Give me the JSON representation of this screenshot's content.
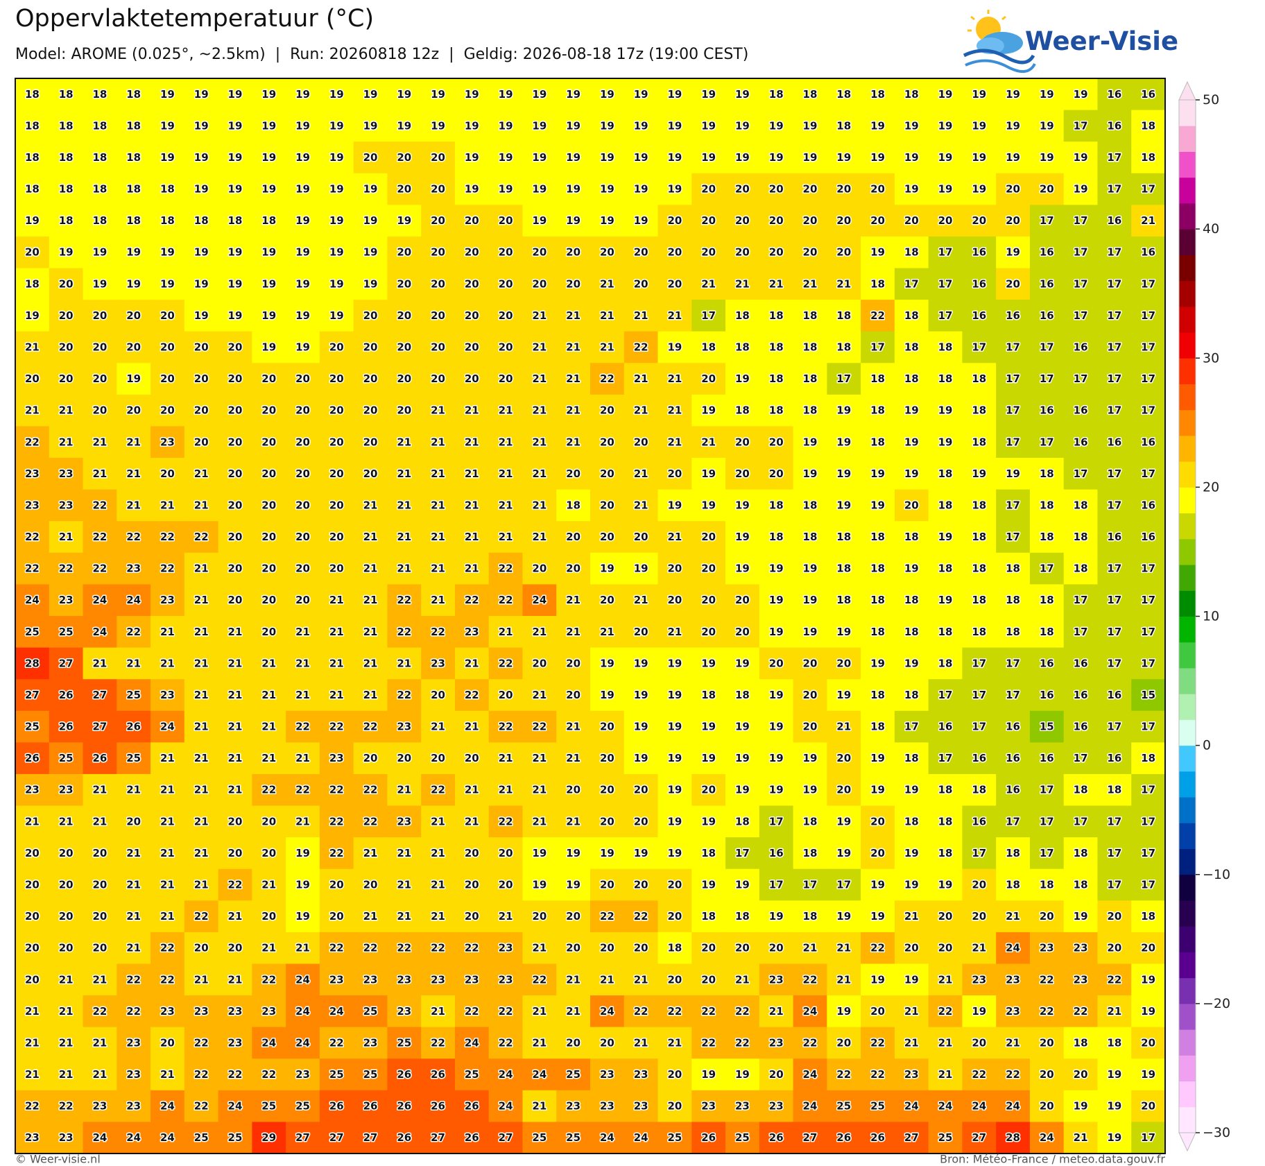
{
  "header": {
    "title": "Oppervlaktetemperatuur (°C)",
    "subtitle": "Model: AROME (0.025°, ~2.5km)  |  Run: 20260818 12z  |  Geldig: 2026-08-18 17z (19:00 CEST)",
    "logo": "Weer-Visie"
  },
  "map": {
    "rows": [
      [
        18,
        18,
        18,
        18,
        19,
        19,
        19,
        19,
        19,
        19,
        19,
        19,
        19,
        19,
        19,
        19,
        19,
        19,
        19,
        19,
        19,
        19,
        18,
        18,
        18,
        18,
        18,
        19,
        19,
        19,
        19,
        19,
        16,
        16
      ],
      [
        18,
        18,
        18,
        18,
        19,
        19,
        19,
        19,
        19,
        19,
        19,
        19,
        19,
        19,
        19,
        19,
        19,
        19,
        19,
        19,
        19,
        19,
        19,
        19,
        18,
        19,
        19,
        19,
        19,
        19,
        19,
        17,
        16,
        18
      ],
      [
        18,
        18,
        18,
        18,
        19,
        19,
        19,
        19,
        19,
        19,
        20,
        20,
        20,
        19,
        19,
        19,
        19,
        19,
        19,
        19,
        19,
        19,
        19,
        19,
        19,
        19,
        19,
        19,
        19,
        19,
        19,
        19,
        17,
        18
      ],
      [
        18,
        18,
        18,
        18,
        18,
        19,
        19,
        19,
        19,
        19,
        19,
        20,
        20,
        19,
        19,
        19,
        19,
        19,
        19,
        19,
        20,
        20,
        20,
        20,
        20,
        20,
        19,
        19,
        19,
        20,
        20,
        19,
        17,
        17
      ],
      [
        19,
        18,
        18,
        18,
        18,
        18,
        18,
        18,
        19,
        19,
        19,
        19,
        20,
        20,
        20,
        19,
        19,
        19,
        19,
        20,
        20,
        20,
        20,
        20,
        20,
        20,
        20,
        20,
        20,
        20,
        17,
        17,
        16,
        21
      ],
      [
        20,
        19,
        19,
        19,
        19,
        19,
        19,
        19,
        19,
        19,
        19,
        20,
        20,
        20,
        20,
        20,
        20,
        20,
        20,
        20,
        20,
        20,
        20,
        20,
        20,
        19,
        18,
        17,
        16,
        19,
        16,
        17,
        17,
        16
      ],
      [
        18,
        20,
        19,
        19,
        19,
        19,
        19,
        19,
        19,
        19,
        19,
        20,
        20,
        20,
        20,
        20,
        20,
        21,
        20,
        20,
        21,
        21,
        21,
        21,
        21,
        18,
        17,
        17,
        16,
        20,
        16,
        17,
        17,
        17
      ],
      [
        19,
        20,
        20,
        20,
        20,
        19,
        19,
        19,
        19,
        19,
        20,
        20,
        20,
        20,
        20,
        21,
        21,
        21,
        21,
        21,
        17,
        18,
        18,
        18,
        18,
        22,
        18,
        17,
        16,
        16,
        16,
        17,
        17,
        17
      ],
      [
        21,
        20,
        20,
        20,
        20,
        20,
        20,
        19,
        19,
        20,
        20,
        20,
        20,
        20,
        20,
        21,
        21,
        21,
        22,
        19,
        18,
        18,
        18,
        18,
        18,
        17,
        18,
        18,
        17,
        17,
        17,
        16,
        17,
        17
      ],
      [
        20,
        20,
        20,
        19,
        20,
        20,
        20,
        20,
        20,
        20,
        20,
        20,
        20,
        20,
        20,
        21,
        21,
        22,
        21,
        21,
        20,
        19,
        18,
        18,
        17,
        18,
        18,
        18,
        18,
        17,
        17,
        17,
        17,
        17
      ],
      [
        21,
        21,
        20,
        20,
        20,
        20,
        20,
        20,
        20,
        20,
        20,
        20,
        21,
        21,
        21,
        21,
        21,
        20,
        21,
        21,
        19,
        18,
        18,
        18,
        19,
        18,
        19,
        19,
        18,
        17,
        16,
        16,
        17,
        17
      ],
      [
        22,
        21,
        21,
        21,
        23,
        20,
        20,
        20,
        20,
        20,
        20,
        21,
        21,
        21,
        21,
        21,
        21,
        20,
        20,
        21,
        21,
        20,
        20,
        19,
        19,
        18,
        19,
        19,
        18,
        17,
        17,
        16,
        16,
        16
      ],
      [
        23,
        23,
        21,
        21,
        20,
        21,
        20,
        20,
        20,
        20,
        20,
        21,
        21,
        21,
        21,
        21,
        20,
        20,
        21,
        20,
        19,
        20,
        20,
        19,
        19,
        19,
        19,
        18,
        19,
        19,
        18,
        17,
        17,
        17
      ],
      [
        23,
        23,
        22,
        21,
        21,
        21,
        20,
        20,
        20,
        20,
        21,
        21,
        21,
        21,
        21,
        21,
        18,
        20,
        21,
        19,
        19,
        19,
        18,
        18,
        19,
        19,
        20,
        18,
        18,
        17,
        18,
        18,
        17,
        16
      ],
      [
        22,
        21,
        22,
        22,
        22,
        22,
        20,
        20,
        20,
        20,
        21,
        21,
        21,
        21,
        21,
        21,
        20,
        20,
        20,
        21,
        20,
        19,
        18,
        18,
        18,
        18,
        18,
        19,
        18,
        17,
        18,
        18,
        16,
        16
      ],
      [
        22,
        22,
        22,
        23,
        22,
        21,
        20,
        20,
        20,
        20,
        21,
        21,
        21,
        21,
        22,
        20,
        20,
        19,
        19,
        20,
        20,
        19,
        19,
        19,
        18,
        18,
        19,
        18,
        18,
        18,
        17,
        18,
        17,
        17
      ],
      [
        24,
        23,
        24,
        24,
        23,
        21,
        20,
        20,
        20,
        21,
        21,
        22,
        21,
        22,
        22,
        24,
        21,
        20,
        21,
        20,
        20,
        20,
        19,
        19,
        18,
        18,
        18,
        19,
        18,
        18,
        18,
        17,
        17,
        17
      ],
      [
        25,
        25,
        24,
        22,
        21,
        21,
        21,
        20,
        21,
        21,
        21,
        22,
        22,
        23,
        21,
        21,
        21,
        21,
        20,
        21,
        20,
        20,
        19,
        19,
        19,
        18,
        18,
        18,
        18,
        18,
        18,
        17,
        17,
        17
      ],
      [
        28,
        27,
        21,
        21,
        21,
        21,
        21,
        21,
        21,
        21,
        21,
        21,
        23,
        21,
        22,
        20,
        20,
        19,
        19,
        19,
        19,
        19,
        20,
        20,
        20,
        19,
        19,
        18,
        17,
        17,
        16,
        16,
        17,
        17
      ],
      [
        27,
        26,
        27,
        25,
        23,
        21,
        21,
        21,
        21,
        21,
        21,
        22,
        20,
        22,
        20,
        21,
        20,
        19,
        19,
        19,
        18,
        18,
        19,
        20,
        19,
        18,
        18,
        17,
        17,
        17,
        16,
        16,
        16,
        15
      ],
      [
        25,
        26,
        27,
        26,
        24,
        21,
        21,
        21,
        22,
        22,
        22,
        23,
        21,
        21,
        22,
        22,
        21,
        20,
        19,
        19,
        19,
        19,
        19,
        20,
        21,
        18,
        17,
        16,
        17,
        16,
        15,
        16,
        17,
        17
      ],
      [
        26,
        25,
        26,
        25,
        21,
        21,
        21,
        21,
        21,
        23,
        20,
        20,
        20,
        20,
        21,
        21,
        21,
        20,
        19,
        19,
        19,
        19,
        19,
        19,
        20,
        19,
        18,
        17,
        16,
        16,
        16,
        17,
        16,
        18
      ],
      [
        23,
        23,
        21,
        21,
        21,
        21,
        21,
        22,
        22,
        22,
        22,
        21,
        22,
        21,
        21,
        21,
        20,
        20,
        20,
        19,
        20,
        19,
        19,
        19,
        20,
        19,
        19,
        18,
        18,
        16,
        17,
        18,
        18,
        17
      ],
      [
        21,
        21,
        21,
        20,
        21,
        21,
        20,
        20,
        21,
        22,
        22,
        23,
        21,
        21,
        22,
        21,
        21,
        20,
        20,
        19,
        19,
        18,
        17,
        18,
        19,
        20,
        18,
        18,
        16,
        17,
        17,
        17,
        17,
        17
      ],
      [
        20,
        20,
        20,
        21,
        21,
        21,
        20,
        20,
        19,
        22,
        21,
        21,
        21,
        20,
        20,
        19,
        19,
        19,
        19,
        19,
        18,
        17,
        16,
        18,
        19,
        20,
        19,
        18,
        17,
        18,
        17,
        18,
        17,
        17
      ],
      [
        20,
        20,
        20,
        21,
        21,
        21,
        22,
        21,
        19,
        20,
        20,
        21,
        21,
        20,
        20,
        19,
        19,
        20,
        20,
        20,
        19,
        19,
        17,
        17,
        17,
        19,
        19,
        19,
        20,
        18,
        18,
        18,
        17,
        17
      ],
      [
        20,
        20,
        20,
        21,
        21,
        22,
        21,
        20,
        19,
        20,
        21,
        21,
        21,
        20,
        21,
        20,
        20,
        22,
        22,
        20,
        18,
        18,
        19,
        18,
        19,
        19,
        21,
        20,
        20,
        21,
        20,
        19,
        20,
        18
      ],
      [
        20,
        20,
        20,
        21,
        22,
        20,
        20,
        21,
        21,
        22,
        22,
        22,
        22,
        22,
        23,
        21,
        20,
        20,
        20,
        18,
        20,
        20,
        20,
        21,
        21,
        22,
        20,
        20,
        21,
        24,
        23,
        23,
        20,
        20
      ],
      [
        20,
        21,
        21,
        22,
        22,
        21,
        21,
        22,
        24,
        23,
        23,
        23,
        23,
        23,
        23,
        22,
        21,
        21,
        21,
        20,
        20,
        21,
        23,
        22,
        21,
        19,
        19,
        21,
        23,
        23,
        22,
        23,
        22,
        19
      ],
      [
        21,
        21,
        22,
        22,
        23,
        23,
        23,
        23,
        24,
        24,
        25,
        23,
        21,
        22,
        22,
        21,
        21,
        24,
        22,
        22,
        22,
        22,
        21,
        24,
        19,
        20,
        21,
        22,
        19,
        23,
        22,
        22,
        21,
        19
      ],
      [
        21,
        21,
        21,
        23,
        20,
        22,
        23,
        24,
        24,
        22,
        23,
        25,
        22,
        24,
        22,
        21,
        20,
        20,
        21,
        21,
        22,
        22,
        23,
        22,
        20,
        22,
        21,
        21,
        20,
        21,
        20,
        18,
        18,
        20
      ],
      [
        21,
        21,
        21,
        23,
        21,
        22,
        22,
        22,
        23,
        25,
        25,
        26,
        26,
        25,
        24,
        24,
        25,
        23,
        23,
        20,
        19,
        19,
        20,
        24,
        22,
        22,
        23,
        21,
        22,
        22,
        20,
        20,
        19,
        19
      ],
      [
        22,
        22,
        23,
        23,
        24,
        22,
        24,
        25,
        25,
        26,
        26,
        26,
        26,
        26,
        24,
        21,
        23,
        23,
        23,
        20,
        23,
        23,
        23,
        24,
        25,
        25,
        24,
        24,
        24,
        24,
        20,
        19,
        19,
        20
      ],
      [
        23,
        23,
        24,
        24,
        24,
        25,
        25,
        29,
        27,
        27,
        27,
        26,
        27,
        26,
        27,
        25,
        25,
        24,
        24,
        25,
        26,
        25,
        26,
        27,
        26,
        26,
        27,
        25,
        27,
        28,
        24,
        21,
        19,
        17
      ]
    ]
  },
  "colorbar": {
    "min": -30,
    "max": 50,
    "ticks": [
      50,
      40,
      30,
      20,
      10,
      0,
      {
        "value": -10,
        "label": "−10"
      },
      {
        "value": -20,
        "label": "−20"
      },
      {
        "value": -30,
        "label": "−30"
      }
    ],
    "colors": [
      "#ffe8ff",
      "#ffc8ff",
      "#f0a0f0",
      "#d080e0",
      "#a050c8",
      "#7830b0",
      "#5a0090",
      "#3c0070",
      "#280050",
      "#100040",
      "#002080",
      "#0040a8",
      "#0070c8",
      "#00a0e8",
      "#40c8ff",
      "#d8fff0",
      "#b0f0b0",
      "#80dc80",
      "#40c840",
      "#00b400",
      "#008c00",
      "#40a800",
      "#90c800",
      "#c8d800",
      "#ffff00",
      "#ffdc00",
      "#ffb400",
      "#ff8800",
      "#ff5a00",
      "#ff3000",
      "#f00000",
      "#d00000",
      "#a50000",
      "#7a0000",
      "#5a0032",
      "#8c0064",
      "#c8009c",
      "#f050c8",
      "#f9a8d4",
      "#fde0ef"
    ]
  },
  "footer": {
    "left": "© Weer-visie.nl",
    "right": "Bron: Météo-France / meteo.data.gouv.fr"
  }
}
